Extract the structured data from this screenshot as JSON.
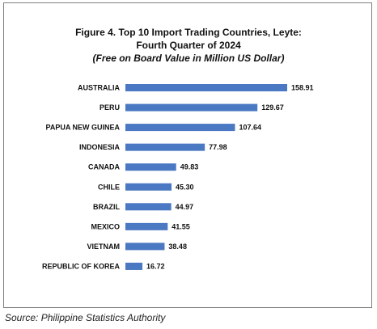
{
  "chart_data": {
    "type": "bar",
    "orientation": "horizontal",
    "title": "Figure 4. Top 10 Import Trading Countries, Leyte:",
    "title_line2": "Fourth Quarter of 2024",
    "subtitle": "(Free on Board Value in Million US Dollar)",
    "categories": [
      "AUSTRALIA",
      "PERU",
      "PAPUA NEW GUINEA",
      "INDONESIA",
      "CANADA",
      "CHILE",
      "BRAZIL",
      "MEXICO",
      "VIETNAM",
      "REPUBLIC OF KOREA"
    ],
    "values": [
      158.91,
      129.67,
      107.64,
      77.98,
      49.83,
      45.3,
      44.97,
      41.55,
      38.48,
      16.72
    ],
    "value_labels": [
      "158.91",
      "129.67",
      "107.64",
      "77.98",
      "49.83",
      "45.30",
      "44.97",
      "41.55",
      "38.48",
      "16.72"
    ],
    "bar_color": "#4a78c2",
    "grid": false,
    "legend": "none"
  },
  "source": "Source: Philippine Statistics Authority"
}
